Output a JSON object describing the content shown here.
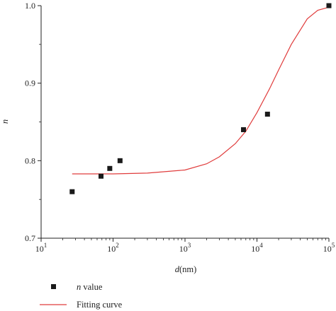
{
  "chart_data": {
    "type": "scatter",
    "x_scale": "log",
    "xlim": [
      10,
      100000
    ],
    "ylim": [
      0.7,
      1.0
    ],
    "xticks": [
      {
        "base": "10",
        "exp": "1"
      },
      {
        "base": "10",
        "exp": "2"
      },
      {
        "base": "10",
        "exp": "3"
      },
      {
        "base": "10",
        "exp": "4"
      },
      {
        "base": "10",
        "exp": "5"
      }
    ],
    "yticks": [
      "0.7",
      "0.8",
      "0.9",
      "1.0"
    ],
    "xlabel": {
      "var": "d",
      "unit": "(nm)"
    },
    "ylabel": "n",
    "grid": false,
    "legend_position": "bottom-left",
    "series": [
      {
        "name_var": "n",
        "name_rest": " value",
        "kind": "points",
        "color": "#1a1a1a",
        "x": [
          27,
          68,
          90,
          125,
          6500,
          14000,
          100000
        ],
        "y": [
          0.76,
          0.78,
          0.79,
          0.8,
          0.84,
          0.86,
          1.0
        ]
      },
      {
        "name": "Fitting curve",
        "kind": "line",
        "color": "#e03c3c",
        "x": [
          27,
          100,
          300,
          1000,
          2000,
          3000,
          5000,
          7000,
          10000,
          15000,
          20000,
          30000,
          50000,
          70000,
          100000
        ],
        "y": [
          0.783,
          0.783,
          0.784,
          0.788,
          0.796,
          0.805,
          0.822,
          0.838,
          0.862,
          0.893,
          0.917,
          0.95,
          0.983,
          0.994,
          0.998
        ]
      }
    ]
  }
}
